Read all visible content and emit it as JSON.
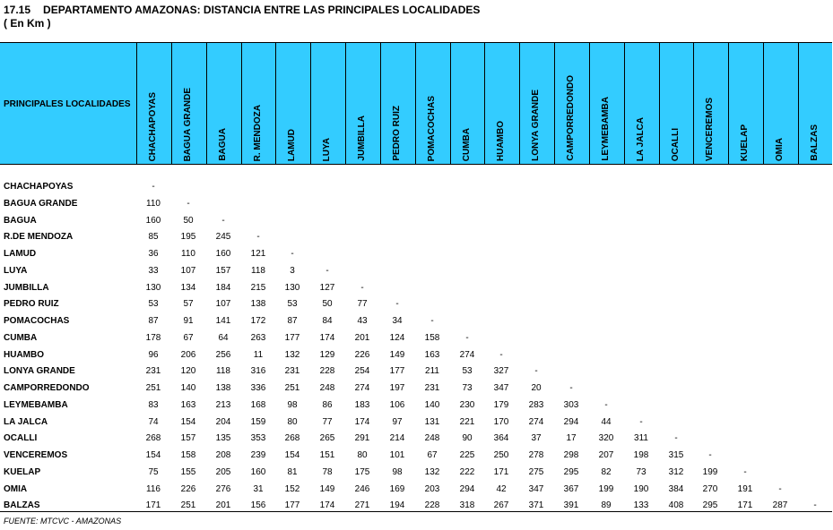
{
  "title": {
    "number": "17.15",
    "text": "DEPARTAMENTO AMAZONAS: DISTANCIA ENTRE LAS PRINCIPALES LOCALIDADES"
  },
  "subtitle": "( En Km )",
  "header_label": "PRINCIPALES  LOCALIDADES",
  "columns": [
    "CHACHAPOYAS",
    "BAGUA GRANDE",
    "BAGUA",
    "R. MENDOZA",
    "LAMUD",
    "LUYA",
    "JUMBILLA",
    "PEDRO RUIZ",
    "POMACOCHAS",
    "CUMBA",
    "HUAMBO",
    "LONYA GRANDE",
    "CAMPORREDONDO",
    "LEYMEBAMBA",
    "LA JALCA",
    "OCALLI",
    "VENCEREMOS",
    "KUELAP",
    "OMIA",
    "BALZAS"
  ],
  "rows": [
    {
      "label": "CHACHAPOYAS",
      "values": [
        "-"
      ]
    },
    {
      "label": "BAGUA GRANDE",
      "values": [
        "110",
        "-"
      ]
    },
    {
      "label": "BAGUA",
      "values": [
        "160",
        "50",
        "-"
      ]
    },
    {
      "label": "R.DE MENDOZA",
      "values": [
        "85",
        "195",
        "245",
        "-"
      ]
    },
    {
      "label": "LAMUD",
      "values": [
        "36",
        "110",
        "160",
        "121",
        "-"
      ]
    },
    {
      "label": "LUYA",
      "values": [
        "33",
        "107",
        "157",
        "118",
        "3",
        "-"
      ]
    },
    {
      "label": "JUMBILLA",
      "values": [
        "130",
        "134",
        "184",
        "215",
        "130",
        "127",
        "-"
      ]
    },
    {
      "label": "PEDRO RUIZ",
      "values": [
        "53",
        "57",
        "107",
        "138",
        "53",
        "50",
        "77",
        "-"
      ]
    },
    {
      "label": "POMACOCHAS",
      "values": [
        "87",
        "91",
        "141",
        "172",
        "87",
        "84",
        "43",
        "34",
        "-"
      ]
    },
    {
      "label": "CUMBA",
      "values": [
        "178",
        "67",
        "64",
        "263",
        "177",
        "174",
        "201",
        "124",
        "158",
        "-"
      ]
    },
    {
      "label": "HUAMBO",
      "values": [
        "96",
        "206",
        "256",
        "11",
        "132",
        "129",
        "226",
        "149",
        "163",
        "274",
        "-"
      ]
    },
    {
      "label": "LONYA GRANDE",
      "values": [
        "231",
        "120",
        "118",
        "316",
        "231",
        "228",
        "254",
        "177",
        "211",
        "53",
        "327",
        "-"
      ]
    },
    {
      "label": "CAMPORREDONDO",
      "values": [
        "251",
        "140",
        "138",
        "336",
        "251",
        "248",
        "274",
        "197",
        "231",
        "73",
        "347",
        "20",
        "-"
      ]
    },
    {
      "label": "LEYMEBAMBA",
      "values": [
        "83",
        "163",
        "213",
        "168",
        "98",
        "86",
        "183",
        "106",
        "140",
        "230",
        "179",
        "283",
        "303",
        "-"
      ]
    },
    {
      "label": "LA JALCA",
      "values": [
        "74",
        "154",
        "204",
        "159",
        "80",
        "77",
        "174",
        "97",
        "131",
        "221",
        "170",
        "274",
        "294",
        "44",
        "-"
      ]
    },
    {
      "label": "OCALLI",
      "values": [
        "268",
        "157",
        "135",
        "353",
        "268",
        "265",
        "291",
        "214",
        "248",
        "90",
        "364",
        "37",
        "17",
        "320",
        "311",
        "-"
      ]
    },
    {
      "label": "VENCEREMOS",
      "values": [
        "154",
        "158",
        "208",
        "239",
        "154",
        "151",
        "80",
        "101",
        "67",
        "225",
        "250",
        "278",
        "298",
        "207",
        "198",
        "315",
        "-"
      ]
    },
    {
      "label": "KUELAP",
      "values": [
        "75",
        "155",
        "205",
        "160",
        "81",
        "78",
        "175",
        "98",
        "132",
        "222",
        "171",
        "275",
        "295",
        "82",
        "73",
        "312",
        "199",
        "-"
      ]
    },
    {
      "label": "OMIA",
      "values": [
        "116",
        "226",
        "276",
        "31",
        "152",
        "149",
        "246",
        "169",
        "203",
        "294",
        "42",
        "347",
        "367",
        "199",
        "190",
        "384",
        "270",
        "191",
        "-"
      ]
    },
    {
      "label": "BALZAS",
      "values": [
        "171",
        "251",
        "201",
        "156",
        "177",
        "174",
        "271",
        "194",
        "228",
        "318",
        "267",
        "371",
        "391",
        "89",
        "133",
        "408",
        "295",
        "171",
        "287",
        "-"
      ]
    }
  ],
  "source": "FUENTE: MTCVC - AMAZONAS"
}
